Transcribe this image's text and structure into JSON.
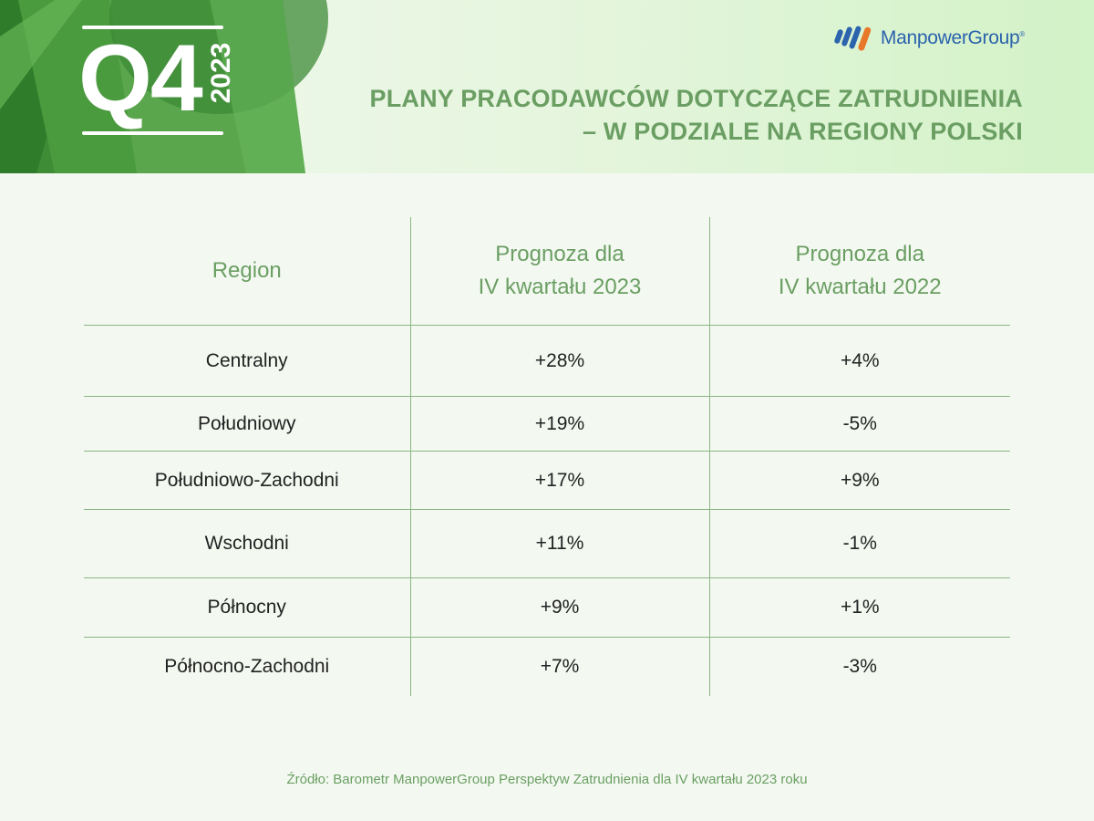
{
  "header": {
    "quarter": "Q4",
    "year": "2023",
    "title_line1": "PLANY PRACODAWCÓW DOTYCZĄCE ZATRUDNIENIA",
    "title_line2": "– W PODZIALE NA REGIONY POLSKI",
    "logo_text": "ManpowerGroup",
    "logo_mark": "®"
  },
  "table": {
    "columns": [
      "Region",
      "Prognoza dla\nIV kwartału 2023",
      "Prognoza dla\nIV kwartału 2022"
    ],
    "rows": [
      {
        "region": "Centralny",
        "q4_2023": "+28%",
        "q4_2022": "+4%"
      },
      {
        "region": "Południowy",
        "q4_2023": "+19%",
        "q4_2022": "-5%"
      },
      {
        "region": "Południowo-Zachodni",
        "q4_2023": "+17%",
        "q4_2022": "+9%"
      },
      {
        "region": "Wschodni",
        "q4_2023": "+11%",
        "q4_2022": "-1%"
      },
      {
        "region": "Północny",
        "q4_2023": "+9%",
        "q4_2022": "+1%"
      },
      {
        "region": "Północno-Zachodni",
        "q4_2023": "+7%",
        "q4_2022": "-3%"
      }
    ]
  },
  "footer": {
    "source": "Źródło: Barometr ManpowerGroup Perspektyw Zatrudnienia dla IV kwartału 2023 roku"
  },
  "colors": {
    "accent_green": "#6b9e63",
    "logo_blue": "#2c63ad",
    "background": "#f3f9f1"
  }
}
